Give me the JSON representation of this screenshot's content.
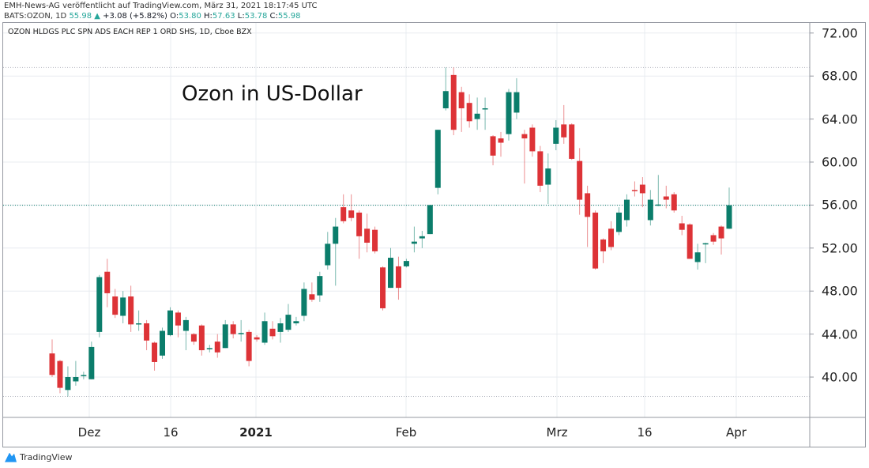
{
  "header": {
    "publisher": "EMH-News-AG veröffentlicht auf TradingView.com, März 31, 2021 18:17:45 UTC",
    "ticker": "BATS:OZON, 1D",
    "last": "55.98",
    "change": "+3.08 (+5.82%)",
    "o_label": "O:",
    "o": "53.80",
    "h_label": "H:",
    "h": "57.63",
    "l_label": "L:",
    "l": "53.78",
    "c_label": "C:",
    "c": "55.98",
    "up_icon": "triangle-up-icon"
  },
  "symbol_desc": "OZON HLDGS PLC SPN ADS EACH REP 1 ORD SHS, 1D, Cboe BZX",
  "chart_title": "Ozon in US-Dollar",
  "footer": {
    "logo_text": "TradingView"
  },
  "colors": {
    "up": "#0b7d6b",
    "down": "#dd3337",
    "grid": "#e8ecf0"
  },
  "chart_data": {
    "type": "candlestick",
    "title": "Ozon in US-Dollar",
    "ylim": [
      37.8,
      73.4
    ],
    "y_ticks": [
      "72.00",
      "68.00",
      "64.00",
      "60.00",
      "56.00",
      "52.00",
      "48.00",
      "44.00",
      "40.00"
    ],
    "y_tick_values": [
      72,
      68,
      64,
      60,
      56,
      52,
      48,
      44,
      40
    ],
    "x_ticks": [
      "Dez",
      "16",
      "2021",
      "Feb",
      "Mrz",
      "16",
      "Apr"
    ],
    "current_price": 55.98,
    "ohlc": [
      [
        42.2,
        43.5,
        40.0,
        40.2
      ],
      [
        41.5,
        41.6,
        38.5,
        39.0
      ],
      [
        38.8,
        41.0,
        38.2,
        40.0
      ],
      [
        39.6,
        41.5,
        39.2,
        40.0
      ],
      [
        40.1,
        40.5,
        39.8,
        40.2
      ],
      [
        39.8,
        43.3,
        39.8,
        42.8
      ],
      [
        44.2,
        49.5,
        43.7,
        49.3
      ],
      [
        49.8,
        51.0,
        46.5,
        47.8
      ],
      [
        47.5,
        48.2,
        45.5,
        45.8
      ],
      [
        45.7,
        48.0,
        45.0,
        47.4
      ],
      [
        47.5,
        48.5,
        44.2,
        44.9
      ],
      [
        45.0,
        46.2,
        44.3,
        45.0
      ],
      [
        45.0,
        45.3,
        42.5,
        43.4
      ],
      [
        43.2,
        43.3,
        40.6,
        41.4
      ],
      [
        42.0,
        44.6,
        41.7,
        44.3
      ],
      [
        43.9,
        46.5,
        43.8,
        46.2
      ],
      [
        46.0,
        46.2,
        43.7,
        44.8
      ],
      [
        44.3,
        45.6,
        42.5,
        45.3
      ],
      [
        44.0,
        44.1,
        43.0,
        43.3
      ],
      [
        44.8,
        44.9,
        42.0,
        42.5
      ],
      [
        42.6,
        43.0,
        42.3,
        42.7
      ],
      [
        43.3,
        44.0,
        41.8,
        42.3
      ],
      [
        42.7,
        45.3,
        42.7,
        44.9
      ],
      [
        44.9,
        45.2,
        43.6,
        44.0
      ],
      [
        44.0,
        45.3,
        43.3,
        44.1
      ],
      [
        44.2,
        44.4,
        41.0,
        41.5
      ],
      [
        43.7,
        43.9,
        43.3,
        43.5
      ],
      [
        43.2,
        46.0,
        43.0,
        45.2
      ],
      [
        44.5,
        45.2,
        43.5,
        43.8
      ],
      [
        44.2,
        45.5,
        43.2,
        45.0
      ],
      [
        44.4,
        46.8,
        44.2,
        45.8
      ],
      [
        45.0,
        45.6,
        44.8,
        45.2
      ],
      [
        45.7,
        48.8,
        45.2,
        48.2
      ],
      [
        47.7,
        48.8,
        47.0,
        47.2
      ],
      [
        47.6,
        49.8,
        47.0,
        49.4
      ],
      [
        50.4,
        53.5,
        50.0,
        52.4
      ],
      [
        52.4,
        54.8,
        48.5,
        54.0
      ],
      [
        55.8,
        57.0,
        54.3,
        54.5
      ],
      [
        55.5,
        57.0,
        54.5,
        54.8
      ],
      [
        55.3,
        55.5,
        51.0,
        53.1
      ],
      [
        53.8,
        55.2,
        51.6,
        52.5
      ],
      [
        53.7,
        54.0,
        51.5,
        51.7
      ],
      [
        50.2,
        50.3,
        46.2,
        46.4
      ],
      [
        48.3,
        52.0,
        48.3,
        51.1
      ],
      [
        50.3,
        51.2,
        47.2,
        48.3
      ],
      [
        50.3,
        51.0,
        50.2,
        50.8
      ],
      [
        52.4,
        54.0,
        51.6,
        52.6
      ],
      [
        52.9,
        53.6,
        52.0,
        53.1
      ],
      [
        53.3,
        56.0,
        53.3,
        56.0
      ],
      [
        57.6,
        63.0,
        57.0,
        63.0
      ],
      [
        65.0,
        68.8,
        64.8,
        66.6
      ],
      [
        68.1,
        68.8,
        62.5,
        63.0
      ],
      [
        66.5,
        67.0,
        62.8,
        65.0
      ],
      [
        65.5,
        66.3,
        63.2,
        63.8
      ],
      [
        64.0,
        66.0,
        63.0,
        64.5
      ],
      [
        65.0,
        66.0,
        63.0,
        65.0
      ],
      [
        62.4,
        62.5,
        59.7,
        60.6
      ],
      [
        62.2,
        62.8,
        60.5,
        61.8
      ],
      [
        62.6,
        66.8,
        62.0,
        66.5
      ],
      [
        64.6,
        67.8,
        64.0,
        66.5
      ],
      [
        62.6,
        63.0,
        58.0,
        62.2
      ],
      [
        63.2,
        63.5,
        60.5,
        61.0
      ],
      [
        61.0,
        61.5,
        57.2,
        57.8
      ],
      [
        57.9,
        60.8,
        56.1,
        59.4
      ],
      [
        61.7,
        63.9,
        61.1,
        63.2
      ],
      [
        63.5,
        65.3,
        61.7,
        62.3
      ],
      [
        63.5,
        63.6,
        60.2,
        60.3
      ],
      [
        60.1,
        61.3,
        55.1,
        56.5
      ],
      [
        57.1,
        57.8,
        52.1,
        54.9
      ],
      [
        55.3,
        55.5,
        50.0,
        50.1
      ],
      [
        52.8,
        52.9,
        50.6,
        51.7
      ],
      [
        53.8,
        54.5,
        51.8,
        52.1
      ],
      [
        53.5,
        55.8,
        53.2,
        55.3
      ],
      [
        54.6,
        57.0,
        54.0,
        56.5
      ],
      [
        57.4,
        58.2,
        56.8,
        57.3
      ],
      [
        57.9,
        58.6,
        55.8,
        57.1
      ],
      [
        54.6,
        57.4,
        54.1,
        56.5
      ],
      [
        56.0,
        58.8,
        55.9,
        56.05
      ],
      [
        56.8,
        57.8,
        55.7,
        56.5
      ],
      [
        57.0,
        57.2,
        55.3,
        55.5
      ],
      [
        54.3,
        55.0,
        53.2,
        53.7
      ],
      [
        54.2,
        54.3,
        51.0,
        51.0
      ],
      [
        50.7,
        52.4,
        50.0,
        51.6
      ],
      [
        52.35,
        52.5,
        50.6,
        52.45
      ],
      [
        53.2,
        53.4,
        52.3,
        52.6
      ],
      [
        54.0,
        54.1,
        51.4,
        52.9
      ],
      [
        53.8,
        57.63,
        53.78,
        55.98
      ]
    ]
  }
}
